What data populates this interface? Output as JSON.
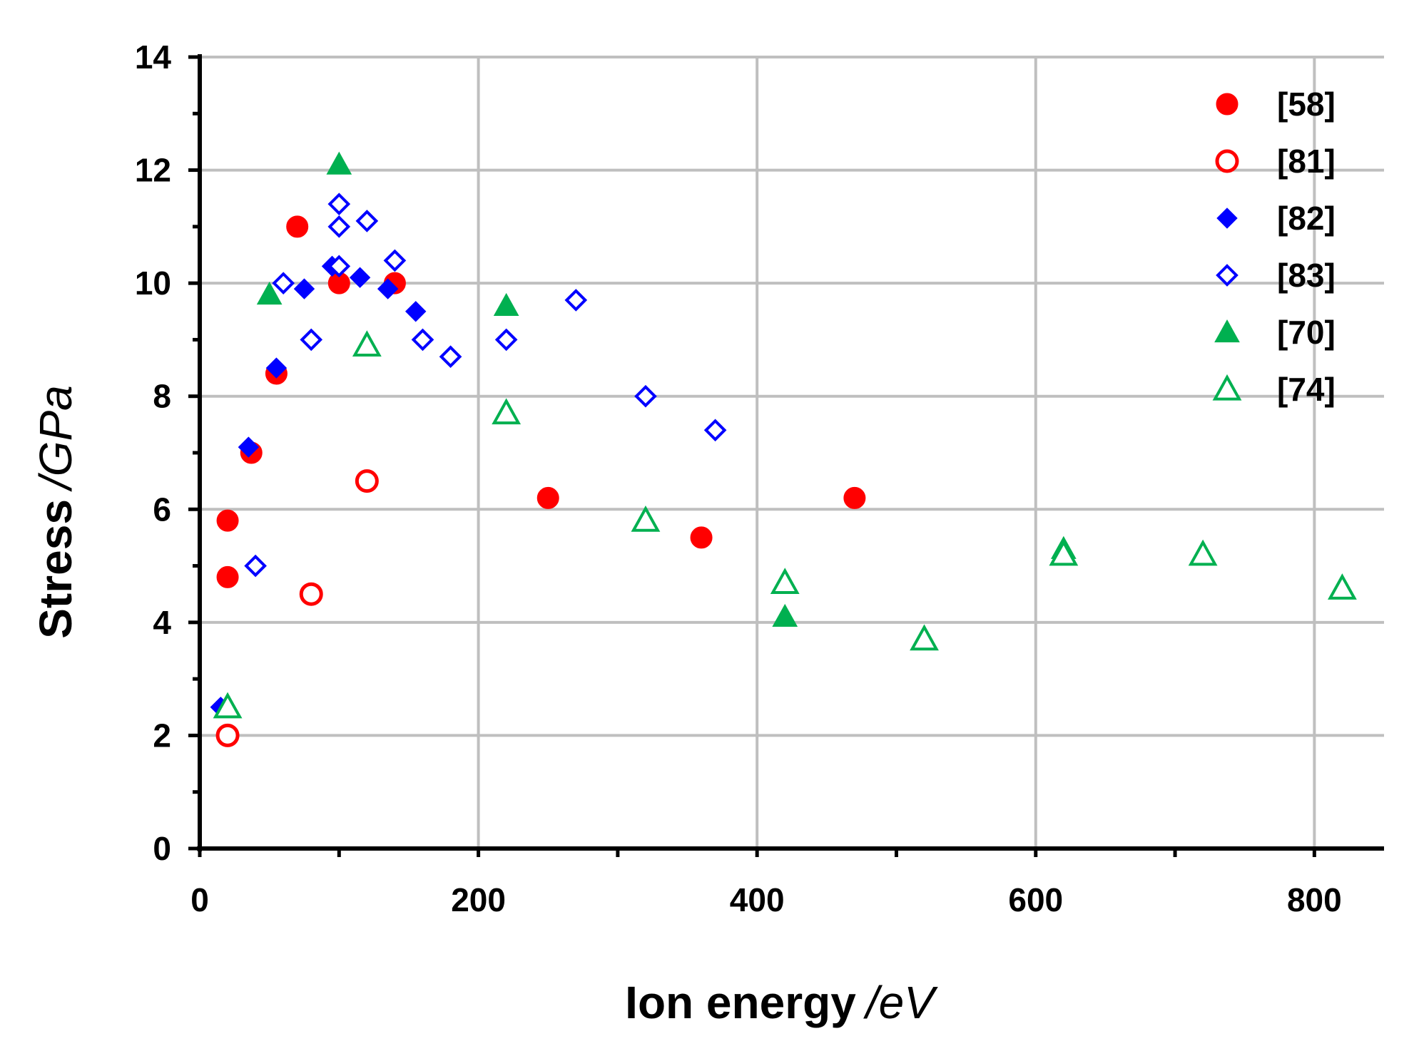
{
  "chart_data": {
    "type": "scatter",
    "xlabel": "Ion energy",
    "xlabel_unit": "/eV",
    "ylabel": "Stress",
    "ylabel_unit": "/GPa",
    "xlim": [
      0,
      850
    ],
    "ylim": [
      0,
      14
    ],
    "x_ticks": [
      0,
      200,
      400,
      600,
      800
    ],
    "y_ticks": [
      0,
      2,
      4,
      6,
      8,
      10,
      12,
      14
    ],
    "grid": true,
    "legend_position": "top-right",
    "series": [
      {
        "name": "[58]",
        "marker": "circle",
        "filled": true,
        "color": "#ff0000",
        "x": [
          20,
          20,
          37,
          55,
          70,
          100,
          140,
          250,
          360,
          470
        ],
        "y": [
          4.8,
          5.8,
          7.0,
          8.4,
          11.0,
          10.0,
          10.0,
          6.2,
          5.5,
          6.2
        ]
      },
      {
        "name": "[81]",
        "marker": "circle",
        "filled": false,
        "color": "#ff0000",
        "x": [
          20,
          80,
          120
        ],
        "y": [
          2.0,
          4.5,
          6.5
        ]
      },
      {
        "name": "[82]",
        "marker": "diamond",
        "filled": true,
        "color": "#0000ff",
        "x": [
          15,
          35,
          55,
          75,
          95,
          115,
          135,
          155
        ],
        "y": [
          2.5,
          7.1,
          8.5,
          9.9,
          10.3,
          10.1,
          9.9,
          9.5
        ]
      },
      {
        "name": "[83]",
        "marker": "diamond",
        "filled": false,
        "color": "#0000ff",
        "x": [
          40,
          60,
          80,
          100,
          100,
          100,
          120,
          140,
          160,
          180,
          220,
          270,
          320,
          370
        ],
        "y": [
          5.0,
          10.0,
          9.0,
          10.3,
          11.0,
          11.4,
          11.1,
          10.4,
          9.0,
          8.7,
          9.0,
          9.7,
          8.0,
          7.4
        ]
      },
      {
        "name": "[70]",
        "marker": "triangle",
        "filled": true,
        "color": "#00b050",
        "x": [
          50,
          100,
          220,
          420,
          620
        ],
        "y": [
          9.8,
          12.1,
          9.6,
          4.1,
          5.3
        ]
      },
      {
        "name": "[74]",
        "marker": "triangle",
        "filled": false,
        "color": "#00b050",
        "x": [
          20,
          120,
          220,
          320,
          420,
          520,
          620,
          720,
          820
        ],
        "y": [
          2.5,
          8.9,
          7.7,
          5.8,
          4.7,
          3.7,
          5.2,
          5.2,
          4.6
        ]
      }
    ]
  }
}
